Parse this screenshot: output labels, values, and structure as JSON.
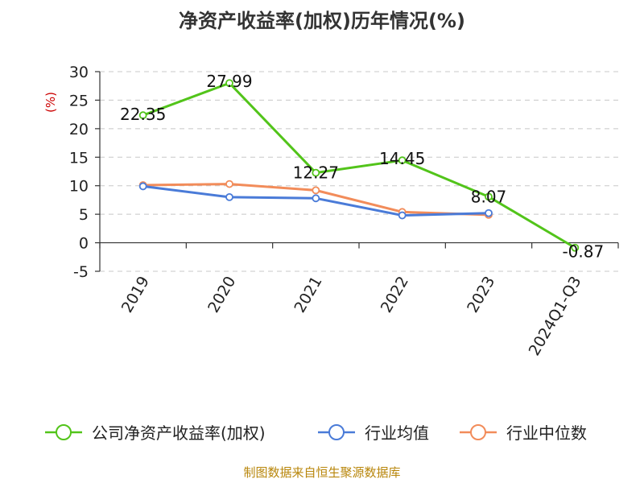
{
  "chart_data": {
    "type": "line",
    "title": "净资产收益率(加权)历年情况(%)",
    "ylabel": "(%)",
    "categories": [
      "2019",
      "2020",
      "2021",
      "2022",
      "2023",
      "2024Q1-Q3"
    ],
    "ylim": [
      -5,
      30
    ],
    "yticks": [
      -5,
      0,
      5,
      10,
      15,
      20,
      25,
      30
    ],
    "grid": true,
    "legend_position": "bottom",
    "series": [
      {
        "name": "公司净资产收益率(加权)",
        "color": "#52c41a",
        "values": [
          22.35,
          27.99,
          12.27,
          14.45,
          8.07,
          -0.87
        ],
        "labels": [
          "22.35",
          "27.99",
          "12.27",
          "14.45",
          "8.07",
          "-0.87"
        ]
      },
      {
        "name": "行业均值",
        "color": "#4a7bd8",
        "values": [
          9.9,
          8.0,
          7.8,
          4.8,
          5.2,
          null
        ]
      },
      {
        "name": "行业中位数",
        "color": "#f28c5a",
        "values": [
          10.1,
          10.3,
          9.2,
          5.4,
          4.9,
          null
        ]
      }
    ]
  },
  "source": "制图数据来自恒生聚源数据库"
}
